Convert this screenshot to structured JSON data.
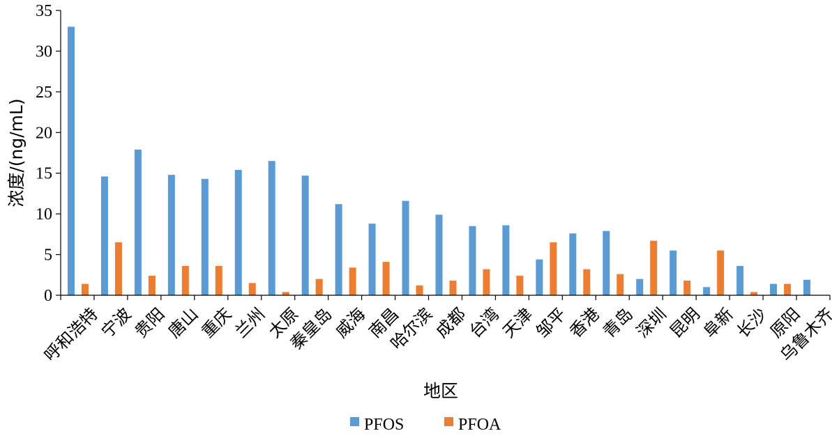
{
  "chart_data": {
    "type": "bar",
    "title": "",
    "xlabel": "地区",
    "ylabel": "浓度/(ng/mL)",
    "ylim": [
      0,
      35
    ],
    "yticks": [
      0,
      5,
      10,
      15,
      20,
      25,
      30,
      35
    ],
    "grid": false,
    "legend_position": "bottom",
    "categories": [
      "呼和浩特",
      "宁波",
      "贵阳",
      "唐山",
      "重庆",
      "兰州",
      "太原",
      "秦皇岛",
      "威海",
      "南昌",
      "哈尔滨",
      "成都",
      "台湾",
      "天津",
      "邹平",
      "香港",
      "青岛",
      "深圳",
      "昆明",
      "阜新",
      "长沙",
      "原阳",
      "乌鲁木齐"
    ],
    "series": [
      {
        "name": "PFOS",
        "color": "#5B9BD5",
        "values": [
          33.0,
          14.6,
          17.9,
          14.8,
          14.3,
          15.4,
          16.5,
          14.7,
          11.2,
          8.8,
          11.6,
          9.9,
          8.5,
          8.6,
          4.4,
          7.6,
          7.9,
          2.0,
          5.5,
          1.0,
          3.6,
          1.4,
          1.9
        ]
      },
      {
        "name": "PFOA",
        "color": "#ED7D31",
        "values": [
          1.4,
          6.5,
          2.4,
          3.6,
          3.6,
          1.5,
          0.4,
          2.0,
          3.4,
          4.1,
          1.2,
          1.8,
          3.2,
          2.4,
          6.5,
          3.2,
          2.6,
          6.7,
          1.8,
          5.5,
          0.4,
          1.4,
          0.0
        ]
      }
    ]
  }
}
